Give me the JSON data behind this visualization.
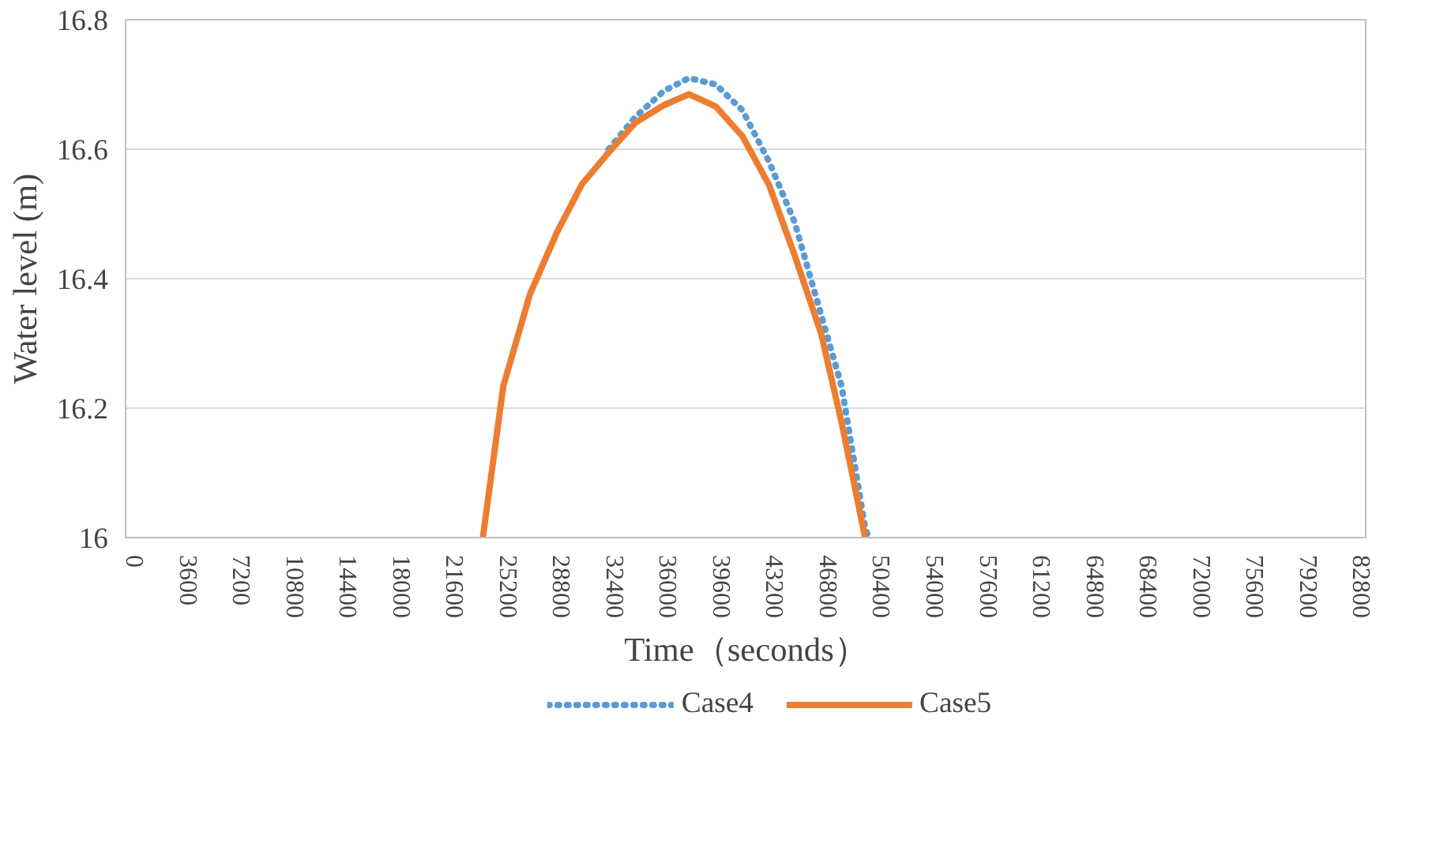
{
  "chart_data": {
    "type": "line",
    "xlabel": "Time（seconds）",
    "ylabel": "Water level (m)",
    "xlim": [
      -640,
      83050
    ],
    "xticks": [
      0,
      3600,
      7200,
      10800,
      14400,
      18000,
      21600,
      25200,
      28800,
      32400,
      36000,
      39600,
      43200,
      46800,
      50400,
      54000,
      57600,
      61200,
      64800,
      68400,
      72000,
      75600,
      79200,
      82800
    ],
    "ylim": [
      16,
      16.8
    ],
    "yticks": [
      16,
      16.2,
      16.4,
      16.6,
      16.8
    ],
    "grid": "y",
    "legend": "bottom",
    "marker": "none",
    "series": [
      {
        "name": "Case4",
        "color": "#5b9bd5",
        "line_style": "dotted",
        "x": [
          31960,
          33770,
          35680,
          37380,
          39190,
          40990,
          42800,
          44500,
          46300,
          47680,
          49270,
          49500
        ],
        "values": [
          16.6,
          16.65,
          16.69,
          16.71,
          16.7,
          16.66,
          16.58,
          16.488,
          16.344,
          16.234,
          16.015,
          16.0
        ]
      },
      {
        "name": "Case5",
        "color": "#ed7d31",
        "line_style": "solid",
        "x": [
          23470,
          24850,
          26650,
          28460,
          30160,
          31960,
          33770,
          35680,
          37380,
          39190,
          40990,
          42800,
          44500,
          46300,
          47680,
          49270
        ],
        "values": [
          16.0,
          16.234,
          16.376,
          16.471,
          16.546,
          16.595,
          16.641,
          16.668,
          16.685,
          16.666,
          16.62,
          16.544,
          16.437,
          16.315,
          16.178,
          16.0
        ]
      }
    ]
  }
}
